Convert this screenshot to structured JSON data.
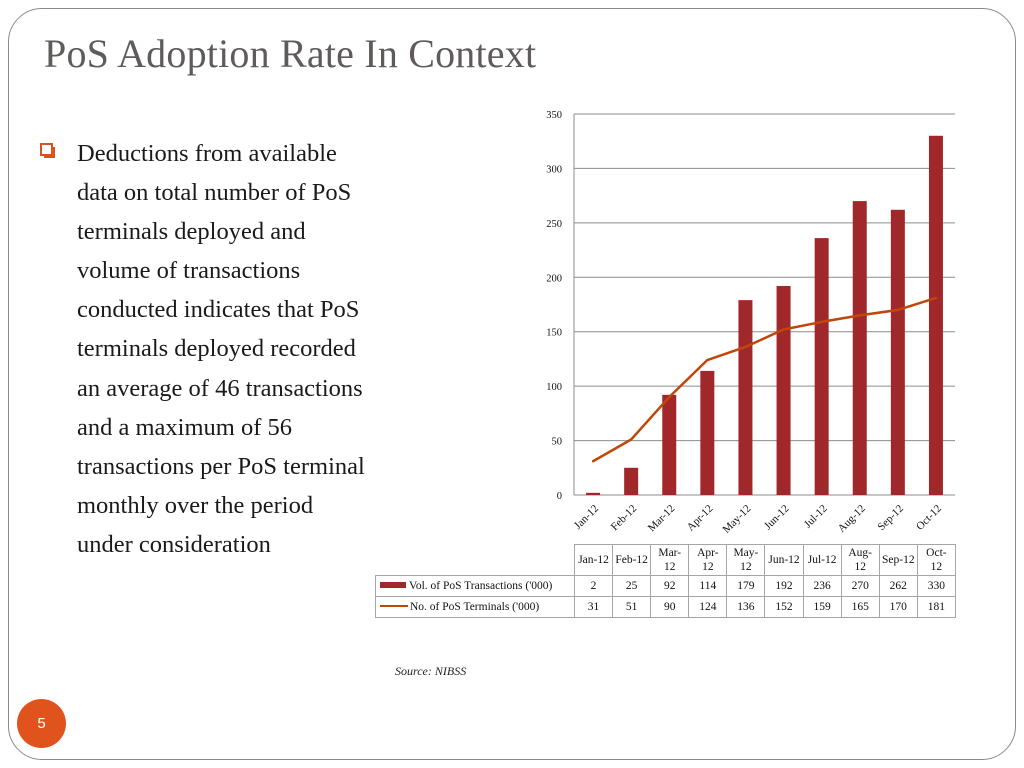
{
  "slide": {
    "title": "PoS Adoption Rate In Context",
    "bullet": "Deductions from available data on total number of  PoS terminals deployed and volume of transactions conducted indicates that PoS terminals deployed recorded an average of 46 transactions and a maximum of 56 transactions per PoS terminal monthly over the period under consideration",
    "source": "Source: NIBSS",
    "page_number": "5",
    "colors": {
      "bars": "#a0282a",
      "line": "#c0470b",
      "accent": "#e0531d",
      "title": "#5f5b5b"
    }
  },
  "chart_data": {
    "type": "bar",
    "categories": [
      "Jan-12",
      "Feb-12",
      "Mar-12",
      "Apr-12",
      "May-12",
      "Jun-12",
      "Jul-12",
      "Aug-12",
      "Sep-12",
      "Oct-12"
    ],
    "series": [
      {
        "name": "Vol. of PoS Transactions ('000)",
        "type": "bar",
        "values": [
          2,
          25,
          92,
          114,
          179,
          192,
          236,
          270,
          262,
          330
        ]
      },
      {
        "name": "No. of PoS Terminals ('000)",
        "type": "line",
        "values": [
          31,
          51,
          90,
          124,
          136,
          152,
          159,
          165,
          170,
          181
        ]
      }
    ],
    "yticks": [
      "0",
      "50",
      "100",
      "150",
      "200",
      "250",
      "300",
      "350"
    ],
    "ylim": [
      0,
      350
    ],
    "grid": true,
    "legend": "data table below chart",
    "table_headers": [
      "Jan-12",
      "Feb-12",
      "Mar-\n12",
      "Apr-\n12",
      "May-\n12",
      "Jun-12",
      "Jul-12",
      "Aug-\n12",
      "Sep-12",
      "Oct-\n12"
    ]
  }
}
